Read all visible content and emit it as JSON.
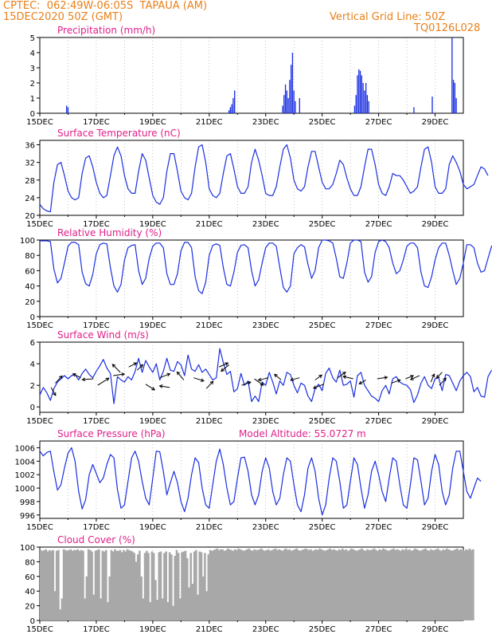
{
  "header": {
    "line1": "CPTEC:  062:49W-06:05S  TAPAUA (AM)",
    "line2": "15DEC2020 50Z (GMT)",
    "grid_note": "Vertical Grid Line: 50Z",
    "code": "TQ0126L028"
  },
  "colors": {
    "header": "#e8801a",
    "title": "#e0208a",
    "line": "#1a2fe0",
    "bar": "#1a2fe0",
    "cloud": "#a8a8a8",
    "axis": "#000000"
  },
  "x_ticks": [
    "15DEC",
    "17DEC",
    "19DEC",
    "21DEC",
    "23DEC",
    "25DEC",
    "27DEC",
    "29DEC"
  ],
  "chart_data": [
    {
      "id": "precip",
      "type": "bar",
      "title": "Precipitation (mm/h)",
      "ylim": [
        0,
        5
      ],
      "yticks": [
        0,
        1,
        2,
        3,
        4,
        5
      ],
      "x_range_days": [
        0,
        15
      ],
      "points": [
        [
          0.95,
          0.5
        ],
        [
          1.0,
          0.4
        ],
        [
          6.7,
          0.2
        ],
        [
          6.75,
          0.4
        ],
        [
          6.8,
          0.6
        ],
        [
          6.85,
          1.0
        ],
        [
          6.9,
          1.5
        ],
        [
          8.6,
          0.5
        ],
        [
          8.65,
          1.2
        ],
        [
          8.7,
          1.9
        ],
        [
          8.75,
          1.5
        ],
        [
          8.8,
          1.0
        ],
        [
          8.85,
          2.2
        ],
        [
          8.9,
          3.2
        ],
        [
          8.95,
          4.0
        ],
        [
          9.0,
          1.5
        ],
        [
          9.05,
          0.8
        ],
        [
          9.2,
          1.0
        ],
        [
          11.15,
          0.5
        ],
        [
          11.2,
          1.2
        ],
        [
          11.25,
          2.5
        ],
        [
          11.3,
          2.9
        ],
        [
          11.35,
          2.8
        ],
        [
          11.4,
          2.5
        ],
        [
          11.45,
          2.0
        ],
        [
          11.5,
          1.5
        ],
        [
          11.55,
          2.0
        ],
        [
          11.6,
          1.2
        ],
        [
          11.65,
          0.8
        ],
        [
          13.25,
          0.4
        ],
        [
          13.9,
          1.1
        ],
        [
          14.6,
          5.0
        ],
        [
          14.65,
          2.2
        ],
        [
          14.7,
          2.0
        ],
        [
          14.75,
          1.0
        ]
      ]
    },
    {
      "id": "temp",
      "type": "line",
      "title": "Surface Temperature (nC)",
      "ylim": [
        20,
        37
      ],
      "yticks": [
        20,
        24,
        28,
        32,
        36
      ],
      "x_range_days": [
        0,
        15
      ],
      "x_step": 0.125,
      "values": [
        22.5,
        21.5,
        21.0,
        20.8,
        27.5,
        31.5,
        32.0,
        29.0,
        25.5,
        24.0,
        23.5,
        24.0,
        29.5,
        33.0,
        33.5,
        31.0,
        27.5,
        25.0,
        24.0,
        24.5,
        29.0,
        33.5,
        35.5,
        33.5,
        29.0,
        26.0,
        25.0,
        25.0,
        30.0,
        34.0,
        32.5,
        28.5,
        24.5,
        23.0,
        22.5,
        24.0,
        30.0,
        34.0,
        34.0,
        30.0,
        25.5,
        24.0,
        23.5,
        25.0,
        31.0,
        35.5,
        36.0,
        32.0,
        26.0,
        24.5,
        24.0,
        25.0,
        29.5,
        33.5,
        34.0,
        30.5,
        26.5,
        25.0,
        25.0,
        26.5,
        32.0,
        35.0,
        32.5,
        29.0,
        25.0,
        24.5,
        24.5,
        26.5,
        31.0,
        35.0,
        36.0,
        33.0,
        28.0,
        26.0,
        25.5,
        26.5,
        31.0,
        34.5,
        34.5,
        31.0,
        27.5,
        26.0,
        26.0,
        27.0,
        29.5,
        32.5,
        31.5,
        28.5,
        26.0,
        24.5,
        24.5,
        26.5,
        31.0,
        35.0,
        35.0,
        31.5,
        27.0,
        25.0,
        24.5,
        26.5,
        29.5,
        29.0,
        29.0,
        28.0,
        26.5,
        25.0,
        25.5,
        26.5,
        31.0,
        35.0,
        35.5,
        32.0,
        26.5,
        25.0,
        25.0,
        26.0,
        31.5,
        33.5,
        32.0,
        30.0,
        27.0,
        26.0,
        26.5,
        27.0,
        29.0,
        31.0,
        30.5,
        29.0
      ]
    },
    {
      "id": "rh",
      "type": "line",
      "title": "Relative Humidity (%)",
      "ylim": [
        0,
        100
      ],
      "yticks": [
        0,
        20,
        40,
        60,
        80,
        100
      ],
      "x_range_days": [
        0,
        15
      ],
      "x_step": 0.125,
      "values": [
        99,
        99,
        99,
        98,
        62,
        44,
        50,
        70,
        92,
        97,
        97,
        94,
        58,
        43,
        40,
        55,
        82,
        94,
        96,
        95,
        64,
        40,
        32,
        42,
        74,
        90,
        93,
        94,
        60,
        42,
        50,
        76,
        92,
        96,
        96,
        90,
        56,
        42,
        42,
        56,
        86,
        97,
        97,
        90,
        52,
        34,
        30,
        45,
        80,
        93,
        95,
        93,
        64,
        42,
        40,
        58,
        84,
        93,
        94,
        90,
        60,
        40,
        48,
        70,
        90,
        96,
        96,
        92,
        64,
        38,
        32,
        40,
        82,
        90,
        94,
        91,
        68,
        50,
        60,
        90,
        100,
        100,
        99,
        96,
        76,
        52,
        50,
        70,
        96,
        100,
        100,
        98,
        58,
        45,
        52,
        84,
        98,
        100,
        98,
        90,
        70,
        56,
        60,
        74,
        92,
        96,
        96,
        90,
        58,
        40,
        38,
        52,
        74,
        90,
        96,
        96,
        80,
        60,
        42,
        50,
        70,
        94,
        94,
        90,
        70,
        58,
        60,
        76,
        92,
        96,
        94,
        94
      ]
    },
    {
      "id": "wind",
      "type": "line",
      "title": "Surface Wind (m/s)",
      "ylim": [
        -0.5,
        6
      ],
      "yticks": [
        0,
        2,
        4,
        6
      ],
      "x_range_days": [
        0,
        15
      ],
      "x_step": 0.125,
      "values": [
        1.1,
        1.8,
        1.3,
        0.6,
        1.7,
        2.3,
        2.6,
        2.9,
        2.6,
        2.9,
        3.0,
        2.5,
        3.1,
        3.5,
        3.0,
        2.7,
        3.3,
        3.8,
        4.4,
        3.6,
        3.1,
        0.3,
        2.8,
        2.5,
        2.3,
        2.8,
        2.5,
        3.3,
        4.5,
        3.2,
        4.3,
        3.7,
        3.2,
        4.0,
        2.5,
        3.3,
        4.5,
        3.4,
        3.3,
        4.2,
        3.9,
        2.9,
        4.8,
        3.5,
        3.3,
        3.9,
        3.2,
        3.5,
        3.0,
        2.5,
        2.7,
        5.4,
        4.1,
        3.0,
        3.3,
        1.4,
        1.7,
        3.1,
        2.0,
        2.4,
        0.5,
        1.0,
        0.5,
        2.3,
        2.0,
        3.2,
        2.3,
        1.2,
        2.4,
        2.0,
        3.2,
        3.0,
        2.0,
        1.3,
        2.2,
        2.0,
        1.0,
        0.5,
        1.7,
        2.1,
        1.5,
        3.1,
        3.6,
        2.7,
        2.3,
        3.4,
        2.0,
        2.1,
        2.4,
        0.9,
        2.9,
        3.2,
        2.0,
        1.5,
        1.0,
        0.8,
        0.5,
        1.5,
        2.0,
        1.2,
        2.6,
        2.8,
        2.3,
        2.1,
        2.0,
        1.6,
        0.4,
        1.1,
        2.2,
        2.8,
        2.0,
        1.7,
        2.6,
        2.7,
        1.5,
        3.0,
        2.9,
        2.2,
        1.5,
        2.4,
        2.9,
        3.2,
        2.8,
        1.4,
        1.8,
        1.0,
        0.9,
        2.8,
        3.4
      ]
    },
    {
      "id": "pressure",
      "type": "line",
      "title": "Surface Pressure (hPa)",
      "note": "Model Altitude: 55.0727 m",
      "ylim": [
        995.5,
        1007
      ],
      "yticks": [
        996,
        998,
        1000,
        1002,
        1004,
        1006
      ],
      "x_range_days": [
        0,
        15
      ],
      "x_step": 0.125,
      "values": [
        1005.5,
        1004.8,
        1005.3,
        1005.5,
        1002.4,
        999.7,
        1000.5,
        1003.0,
        1005.2,
        1006.0,
        1004.0,
        999.5,
        996.9,
        998.3,
        1002.0,
        1003.5,
        1002.2,
        1000.8,
        1001.5,
        1003.5,
        1005.0,
        1004.5,
        999.8,
        997.0,
        997.5,
        1001.0,
        1004.5,
        1005.5,
        1004.0,
        1001.0,
        998.5,
        997.5,
        1001.5,
        1005.5,
        1005.4,
        1002.5,
        999.0,
        1000.8,
        1002.5,
        1000.8,
        998.0,
        996.5,
        998.5,
        1002.0,
        1004.5,
        1003.8,
        1000.0,
        997.5,
        997.0,
        1000.5,
        1004.0,
        1005.8,
        1003.5,
        1000.0,
        997.5,
        998.0,
        1001.5,
        1004.5,
        1004.6,
        1002.5,
        999.0,
        997.5,
        999.0,
        1002.5,
        1004.5,
        1003.0,
        999.5,
        997.5,
        998.5,
        1002.0,
        1004.5,
        1004.0,
        1000.5,
        997.5,
        996.5,
        999.0,
        1003.0,
        1004.5,
        1002.5,
        998.5,
        996.0,
        997.5,
        1001.5,
        1004.5,
        1004.0,
        1001.0,
        997.0,
        997.5,
        1001.0,
        1004.5,
        1003.5,
        1000.0,
        997.0,
        999.0,
        1002.5,
        1004.0,
        1002.0,
        999.5,
        998.0,
        1001.5,
        1004.5,
        1004.0,
        1000.5,
        997.5,
        997.0,
        1000.5,
        1004.5,
        1004.2,
        1001.0,
        997.5,
        998.5,
        1002.5,
        1005.0,
        1003.5,
        999.5,
        997.5,
        999.0,
        1003.0,
        1005.5,
        1005.5,
        1002.5,
        999.5,
        998.5,
        1000.0,
        1001.5,
        1001.0
      ]
    },
    {
      "id": "cloud",
      "type": "area",
      "title": "Cloud Cover (%)",
      "ylim": [
        0,
        100
      ],
      "yticks": [
        0,
        20,
        40,
        60,
        80,
        100
      ],
      "x_range_days": [
        0,
        15
      ],
      "x_step": 0.0625,
      "values": [
        96,
        95,
        96,
        97,
        94,
        96,
        95,
        96,
        40,
        95,
        96,
        15,
        30,
        97,
        96,
        95,
        96,
        97,
        95,
        96,
        96,
        97,
        95,
        96,
        95,
        30,
        60,
        97,
        96,
        94,
        35,
        95,
        96,
        97,
        30,
        95,
        94,
        96,
        25,
        60,
        96,
        94,
        97,
        95,
        95,
        96,
        93,
        96,
        94,
        97,
        96,
        95,
        94,
        92,
        80,
        90,
        95,
        60,
        30,
        92,
        95,
        92,
        25,
        94,
        92,
        55,
        28,
        93,
        94,
        30,
        92,
        94,
        25,
        93,
        90,
        20,
        88,
        96,
        92,
        30,
        93,
        94,
        95,
        85,
        45,
        92,
        50,
        94,
        96,
        35,
        94,
        93,
        60,
        92,
        40,
        90,
        96,
        95,
        96,
        97,
        98,
        96,
        97,
        97,
        95,
        96,
        98,
        97,
        96,
        95,
        97,
        96,
        98,
        97,
        96,
        95,
        96,
        97,
        98,
        96,
        95,
        97,
        96,
        96,
        97,
        98,
        96,
        95,
        96,
        97,
        95,
        96,
        97,
        98,
        96,
        97,
        96,
        95,
        97,
        98,
        96,
        97,
        95,
        96,
        97,
        98,
        96,
        95,
        96,
        97,
        98,
        97,
        96,
        97,
        95,
        96,
        97,
        96,
        98,
        97,
        96,
        95,
        96,
        97,
        98,
        96,
        97,
        96,
        95,
        97,
        96,
        98,
        96,
        97,
        95,
        96,
        98,
        97,
        96,
        95,
        96,
        97,
        98,
        96,
        95,
        97,
        96,
        96,
        97,
        98,
        96,
        95,
        97,
        96,
        98,
        97,
        96,
        95,
        96,
        97,
        98,
        96,
        97,
        96,
        95,
        97,
        96,
        98,
        96,
        97,
        95,
        96,
        98,
        97,
        96,
        95,
        96,
        97,
        98,
        96,
        95,
        97,
        96,
        96,
        97,
        98,
        96,
        95,
        97,
        96,
        98,
        97,
        96,
        95,
        96,
        97,
        98,
        96,
        97,
        96,
        95,
        97,
        96,
        98,
        96,
        97
      ]
    }
  ],
  "wind_vectors": [
    [
      0.4,
      1.8,
      0.4,
      -1.0
    ],
    [
      0.55,
      2.2,
      0.6,
      0.9
    ],
    [
      1.45,
      2.7,
      -0.7,
      0.5
    ],
    [
      1.9,
      2.6,
      -1.0,
      -0.1
    ],
    [
      2.05,
      2.0,
      1.0,
      0.9
    ],
    [
      2.6,
      2.9,
      1.0,
      0.2
    ],
    [
      2.85,
      3.2,
      -0.7,
      1.0
    ],
    [
      3.15,
      3.7,
      0.7,
      0.5
    ],
    [
      3.45,
      3.4,
      0.5,
      0.7
    ],
    [
      3.75,
      2.1,
      0.8,
      -0.7
    ],
    [
      4.25,
      2.7,
      0.9,
      0.5
    ],
    [
      4.6,
      1.8,
      -0.9,
      0.2
    ],
    [
      5.1,
      2.5,
      -0.6,
      1.0
    ],
    [
      5.45,
      2.7,
      0.9,
      -0.4
    ],
    [
      5.9,
      1.7,
      0.6,
      0.9
    ],
    [
      6.35,
      3.7,
      0.8,
      0.5
    ],
    [
      6.7,
      3.9,
      -0.7,
      -0.8
    ],
    [
      7.15,
      2.0,
      0.8,
      0.4
    ],
    [
      7.6,
      2.6,
      0.8,
      -0.8
    ],
    [
      8.1,
      2.7,
      -0.9,
      -0.3
    ],
    [
      8.55,
      2.5,
      -0.6,
      0.7
    ],
    [
      9.2,
      2.7,
      -0.8,
      -0.3
    ],
    [
      9.75,
      2.5,
      0.6,
      0.6
    ],
    [
      10.05,
      2.1,
      -0.9,
      -0.5
    ],
    [
      10.55,
      2.7,
      0.7,
      0.7
    ],
    [
      11.1,
      2.6,
      -0.9,
      0.3
    ],
    [
      11.55,
      2.5,
      -0.6,
      -0.5
    ],
    [
      11.95,
      2.6,
      0.9,
      0.2
    ],
    [
      12.45,
      2.2,
      0.8,
      0.4
    ],
    [
      12.95,
      2.6,
      0.7,
      0.4
    ],
    [
      13.45,
      2.9,
      -0.8,
      -0.5
    ],
    [
      13.85,
      2.3,
      0.3,
      1.0
    ],
    [
      14.15,
      2.0,
      0.6,
      0.9
    ],
    [
      14.25,
      3.2,
      -0.5,
      -0.7
    ]
  ]
}
